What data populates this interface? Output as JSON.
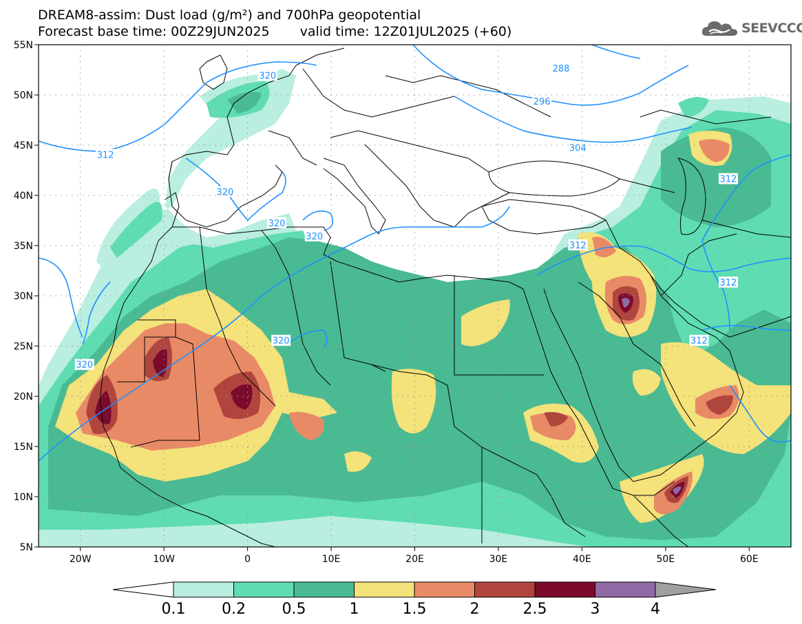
{
  "title": {
    "line1": "DREAM8-assim: Dust load (g/m²) and 700hPa geopotential",
    "base_time": "Forecast base time: 00Z29JUN2025",
    "valid_time": "valid time: 12Z01JUL2025 (+60)"
  },
  "logo": {
    "text": "SEEVCCC",
    "icon": "cloud-icon",
    "color": "#6b6b6b"
  },
  "map": {
    "lon_range": [
      -25,
      65
    ],
    "lat_range": [
      5,
      55
    ],
    "lat_ticks": [
      {
        "value": 55,
        "label": "55N"
      },
      {
        "value": 50,
        "label": "50N"
      },
      {
        "value": 45,
        "label": "45N"
      },
      {
        "value": 40,
        "label": "40N"
      },
      {
        "value": 35,
        "label": "35N"
      },
      {
        "value": 30,
        "label": "30N"
      },
      {
        "value": 25,
        "label": "25N"
      },
      {
        "value": 20,
        "label": "20N"
      },
      {
        "value": 15,
        "label": "15N"
      },
      {
        "value": 10,
        "label": "10N"
      },
      {
        "value": 5,
        "label": "5N"
      }
    ],
    "lon_ticks": [
      {
        "value": -20,
        "label": "20W"
      },
      {
        "value": -10,
        "label": "10W"
      },
      {
        "value": 0,
        "label": "0"
      },
      {
        "value": 10,
        "label": "10E"
      },
      {
        "value": 20,
        "label": "20E"
      },
      {
        "value": 30,
        "label": "30E"
      },
      {
        "value": 40,
        "label": "40E"
      },
      {
        "value": 50,
        "label": "50E"
      },
      {
        "value": 60,
        "label": "60E"
      }
    ],
    "geopotential_contour_color": "#1e90ff",
    "geopotential_labels": [
      {
        "text": "288",
        "lon": 37.5,
        "lat": 52.6
      },
      {
        "text": "296",
        "lon": 35.2,
        "lat": 49.3
      },
      {
        "text": "304",
        "lon": 39.5,
        "lat": 44.7
      },
      {
        "text": "312",
        "lon": -17.0,
        "lat": 44.0
      },
      {
        "text": "312",
        "lon": 39.5,
        "lat": 35.0
      },
      {
        "text": "312",
        "lon": 57.5,
        "lat": 41.6
      },
      {
        "text": "312",
        "lon": 57.5,
        "lat": 31.3
      },
      {
        "text": "312",
        "lon": 54.0,
        "lat": 25.5
      },
      {
        "text": "320",
        "lon": 2.4,
        "lat": 51.9
      },
      {
        "text": "320",
        "lon": -2.7,
        "lat": 40.3
      },
      {
        "text": "320",
        "lon": 3.5,
        "lat": 37.2
      },
      {
        "text": "320",
        "lon": 8.0,
        "lat": 35.9
      },
      {
        "text": "320",
        "lon": -19.5,
        "lat": 23.1
      },
      {
        "text": "320",
        "lon": 4.0,
        "lat": 25.5
      }
    ]
  },
  "colorbar": {
    "levels": [
      "0.1",
      "0.2",
      "0.5",
      "1",
      "1.5",
      "2",
      "2.5",
      "3",
      "4"
    ],
    "colors": [
      "#b9eee0",
      "#5fdcb2",
      "#4aba93",
      "#f4e27a",
      "#e98a66",
      "#b0453e",
      "#7c0a2c",
      "#8f6aa4"
    ],
    "under_color": "#ffffff",
    "over_color": "#a0a0a0"
  },
  "dust_colors": {
    "l1": "#b9eee0",
    "l2": "#5fdcb2",
    "l3": "#4aba93",
    "l4": "#f4e27a",
    "l5": "#e98a66",
    "l6": "#b0453e",
    "l7": "#7c0a2c",
    "l8": "#8f6aa4"
  }
}
